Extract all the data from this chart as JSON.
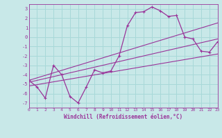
{
  "xlabel": "Windchill (Refroidissement éolien,°C)",
  "background_color": "#c8e8e8",
  "grid_color": "#a8d8d8",
  "line_color": "#993399",
  "xlim": [
    0,
    23
  ],
  "ylim": [
    -7.5,
    3.5
  ],
  "xticks": [
    0,
    1,
    2,
    3,
    4,
    5,
    6,
    7,
    8,
    9,
    10,
    11,
    12,
    13,
    14,
    15,
    16,
    17,
    18,
    19,
    20,
    21,
    22,
    23
  ],
  "yticks": [
    -7,
    -6,
    -5,
    -4,
    -3,
    -2,
    -1,
    0,
    1,
    2,
    3
  ],
  "series": [
    [
      0,
      -4.6
    ],
    [
      1,
      -5.3
    ],
    [
      2,
      -6.5
    ],
    [
      3,
      -3.0
    ],
    [
      4,
      -4.0
    ],
    [
      5,
      -6.3
    ],
    [
      6,
      -7.0
    ],
    [
      7,
      -5.3
    ],
    [
      8,
      -3.5
    ],
    [
      9,
      -3.8
    ],
    [
      10,
      -3.6
    ],
    [
      11,
      -2.0
    ],
    [
      12,
      1.2
    ],
    [
      13,
      2.6
    ],
    [
      14,
      2.7
    ],
    [
      15,
      3.2
    ],
    [
      16,
      2.8
    ],
    [
      17,
      2.2
    ],
    [
      18,
      2.3
    ],
    [
      19,
      0.0
    ],
    [
      20,
      -0.2
    ],
    [
      21,
      -1.5
    ],
    [
      22,
      -1.6
    ],
    [
      23,
      -0.5
    ]
  ],
  "trend_lines": [
    [
      [
        0,
        23
      ],
      [
        -4.6,
        1.5
      ]
    ],
    [
      [
        0,
        23
      ],
      [
        -4.8,
        -0.2
      ]
    ],
    [
      [
        0,
        23
      ],
      [
        -5.2,
        -1.8
      ]
    ]
  ],
  "tick_fontsize": 4.5,
  "xlabel_fontsize": 5.5
}
